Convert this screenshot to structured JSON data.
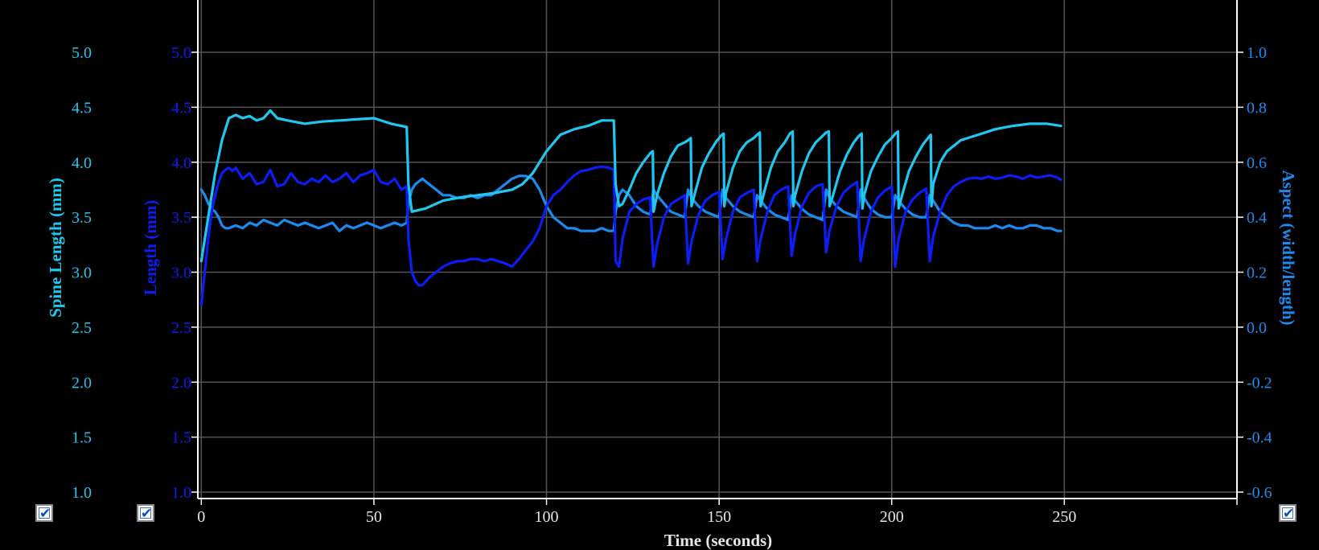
{
  "colors": {
    "background": "#000000",
    "grid": "#555555",
    "axis": "#ffffff",
    "spine_length": "#1ec8f0",
    "length": "#0a1ef5",
    "aspect": "#1a8cf0"
  },
  "checkboxes": [
    {
      "axis": "spine_length",
      "checked": true
    },
    {
      "axis": "length",
      "checked": true
    },
    {
      "axis": "aspect",
      "checked": true
    }
  ],
  "chart_data": {
    "type": "line",
    "xlabel": "Time (seconds)",
    "xlim": [
      -1,
      300
    ],
    "x_ticks": [
      "0",
      "50",
      "100",
      "150",
      "200",
      "250"
    ],
    "grid": true,
    "axes": {
      "spine_length": {
        "label": "Spine Length (mm)",
        "ylim": [
          1.0,
          5.0
        ],
        "ticks": [
          "1.0",
          "1.5",
          "2.0",
          "2.5",
          "3.0",
          "3.5",
          "4.0",
          "4.5",
          "5.0"
        ]
      },
      "length": {
        "label": "Length (mm)",
        "ylim": [
          1.0,
          5.0
        ],
        "ticks": [
          "1.0",
          "1.5",
          "2.0",
          "2.5",
          "3.0",
          "3.5",
          "4.0",
          "4.5",
          "5.0"
        ]
      },
      "aspect": {
        "label": "Aspect (width/length)",
        "ylim": [
          -0.6,
          1.0
        ],
        "ticks": [
          "-0.6",
          "-0.4",
          "-0.2",
          "0.0",
          "0.2",
          "0.4",
          "0.6",
          "0.8",
          "1.0"
        ]
      }
    },
    "series": [
      {
        "axis": "spine_length",
        "x": [
          0,
          2,
          4,
          6,
          8,
          10,
          12,
          14,
          16,
          18,
          20,
          22,
          25,
          30,
          35,
          40,
          45,
          50,
          55,
          59.5,
          60,
          61,
          65,
          70,
          75,
          80,
          85,
          90,
          93,
          96,
          100,
          104,
          108,
          112,
          116,
          119.5,
          120,
          121,
          122,
          124,
          126,
          128,
          130,
          130.8,
          131,
          132,
          134,
          136,
          138,
          140,
          141,
          141.8,
          142,
          143,
          145,
          147,
          149,
          150.5,
          151.3,
          151.5,
          152,
          154,
          156,
          158,
          160,
          161,
          161.8,
          162,
          163,
          165,
          167,
          169,
          170.5,
          171.3,
          171.5,
          172,
          174,
          176,
          178,
          180,
          181,
          181.8,
          182,
          183,
          185,
          187,
          189,
          190.5,
          191.3,
          191.5,
          192,
          194,
          196,
          198,
          200,
          201,
          201.8,
          202,
          203,
          205,
          207,
          209,
          210.5,
          211.3,
          211.5,
          212,
          214,
          216,
          218,
          220,
          225,
          230,
          235,
          240,
          245,
          249
        ],
        "y": [
          3.1,
          3.5,
          3.9,
          4.2,
          4.4,
          4.43,
          4.4,
          4.42,
          4.38,
          4.4,
          4.47,
          4.4,
          4.38,
          4.35,
          4.37,
          4.38,
          4.39,
          4.4,
          4.35,
          4.32,
          3.8,
          3.55,
          3.58,
          3.65,
          3.68,
          3.7,
          3.72,
          3.75,
          3.8,
          3.9,
          4.1,
          4.25,
          4.3,
          4.33,
          4.38,
          4.38,
          3.8,
          3.6,
          3.62,
          3.75,
          3.9,
          4.0,
          4.08,
          4.1,
          3.55,
          3.7,
          3.9,
          4.05,
          4.15,
          4.18,
          4.2,
          4.22,
          3.6,
          3.72,
          3.95,
          4.08,
          4.18,
          4.24,
          4.26,
          3.6,
          3.72,
          3.95,
          4.1,
          4.18,
          4.22,
          4.25,
          4.27,
          3.6,
          3.72,
          3.95,
          4.1,
          4.18,
          4.26,
          4.28,
          3.6,
          3.7,
          3.92,
          4.08,
          4.18,
          4.24,
          4.27,
          4.28,
          3.6,
          3.7,
          3.92,
          4.07,
          4.18,
          4.24,
          4.26,
          3.58,
          3.7,
          3.92,
          4.05,
          4.16,
          4.22,
          4.26,
          4.28,
          3.58,
          3.7,
          3.92,
          4.05,
          4.16,
          4.22,
          4.25,
          3.6,
          3.8,
          4.0,
          4.1,
          4.15,
          4.2,
          4.25,
          4.3,
          4.33,
          4.35,
          4.35,
          4.33
        ]
      },
      {
        "axis": "length",
        "x": [
          0,
          1,
          2,
          3,
          4,
          5,
          6,
          7,
          8,
          9,
          10,
          12,
          14,
          16,
          18,
          20,
          22,
          24,
          26,
          28,
          30,
          32,
          34,
          36,
          38,
          40,
          42,
          44,
          46,
          48,
          50,
          52,
          54,
          56,
          58,
          59.5,
          60,
          61,
          62,
          63,
          64,
          66,
          68,
          70,
          72,
          74,
          76,
          78,
          80,
          82,
          84,
          86,
          88,
          90,
          92,
          94,
          96,
          98,
          100,
          102,
          104,
          106,
          108,
          110,
          112,
          114,
          116,
          118,
          119.5,
          120,
          121,
          122,
          124,
          126,
          128,
          130,
          131,
          132,
          134,
          136,
          138,
          140,
          141,
          142,
          144,
          146,
          148,
          150,
          151,
          152,
          154,
          156,
          158,
          160,
          161,
          162,
          164,
          166,
          168,
          170,
          171,
          172,
          174,
          176,
          178,
          180,
          181,
          182,
          184,
          186,
          188,
          190,
          191,
          192,
          194,
          196,
          198,
          200,
          201,
          202,
          204,
          206,
          208,
          210,
          211,
          212,
          214,
          216,
          218,
          220,
          222,
          224,
          226,
          228,
          230,
          232,
          234,
          236,
          238,
          240,
          242,
          244,
          246,
          248,
          249
        ],
        "y": [
          2.7,
          3.0,
          3.3,
          3.55,
          3.7,
          3.82,
          3.9,
          3.93,
          3.95,
          3.92,
          3.95,
          3.85,
          3.9,
          3.8,
          3.82,
          3.93,
          3.78,
          3.8,
          3.9,
          3.82,
          3.8,
          3.85,
          3.82,
          3.88,
          3.82,
          3.85,
          3.9,
          3.82,
          3.88,
          3.9,
          3.93,
          3.82,
          3.8,
          3.85,
          3.75,
          3.78,
          3.3,
          3.0,
          2.92,
          2.88,
          2.88,
          2.95,
          3.0,
          3.05,
          3.08,
          3.1,
          3.1,
          3.12,
          3.12,
          3.1,
          3.12,
          3.1,
          3.08,
          3.05,
          3.12,
          3.2,
          3.28,
          3.4,
          3.6,
          3.7,
          3.75,
          3.82,
          3.88,
          3.92,
          3.93,
          3.95,
          3.96,
          3.95,
          3.93,
          3.1,
          3.05,
          3.3,
          3.55,
          3.62,
          3.66,
          3.68,
          3.05,
          3.25,
          3.5,
          3.62,
          3.66,
          3.7,
          3.08,
          3.28,
          3.52,
          3.65,
          3.7,
          3.73,
          3.12,
          3.3,
          3.55,
          3.68,
          3.72,
          3.75,
          3.1,
          3.3,
          3.55,
          3.7,
          3.75,
          3.78,
          3.15,
          3.35,
          3.6,
          3.72,
          3.78,
          3.8,
          3.18,
          3.38,
          3.6,
          3.72,
          3.78,
          3.82,
          3.1,
          3.3,
          3.55,
          3.68,
          3.74,
          3.78,
          3.05,
          3.3,
          3.55,
          3.66,
          3.72,
          3.76,
          3.1,
          3.32,
          3.55,
          3.7,
          3.78,
          3.82,
          3.85,
          3.86,
          3.85,
          3.87,
          3.85,
          3.86,
          3.88,
          3.87,
          3.85,
          3.88,
          3.86,
          3.87,
          3.88,
          3.86,
          3.84
        ]
      },
      {
        "axis": "aspect",
        "x": [
          0,
          1,
          2,
          3,
          4,
          5,
          6,
          7,
          8,
          10,
          12,
          14,
          16,
          18,
          20,
          22,
          24,
          26,
          28,
          30,
          32,
          34,
          36,
          38,
          40,
          42,
          44,
          46,
          48,
          50,
          52,
          54,
          56,
          58,
          59.5,
          60,
          61,
          62,
          63,
          64,
          66,
          68,
          70,
          72,
          74,
          76,
          78,
          80,
          82,
          84,
          86,
          88,
          90,
          92,
          94,
          96,
          98,
          100,
          102,
          104,
          106,
          108,
          110,
          112,
          114,
          116,
          118,
          119.5,
          120,
          121,
          122,
          124,
          126,
          128,
          130,
          131,
          132,
          134,
          136,
          138,
          140,
          141,
          142,
          144,
          146,
          148,
          150,
          151,
          152,
          154,
          156,
          158,
          160,
          161,
          162,
          164,
          166,
          168,
          170,
          171,
          172,
          174,
          176,
          178,
          180,
          181,
          182,
          184,
          186,
          188,
          190,
          191,
          192,
          194,
          196,
          198,
          200,
          201,
          202,
          204,
          206,
          208,
          210,
          211,
          212,
          214,
          216,
          218,
          220,
          222,
          224,
          226,
          228,
          230,
          232,
          234,
          236,
          238,
          240,
          242,
          244,
          246,
          248,
          249
        ],
        "y": [
          0.5,
          0.48,
          0.45,
          0.43,
          0.42,
          0.4,
          0.37,
          0.36,
          0.36,
          0.37,
          0.36,
          0.38,
          0.37,
          0.39,
          0.38,
          0.37,
          0.39,
          0.38,
          0.37,
          0.38,
          0.37,
          0.36,
          0.37,
          0.38,
          0.35,
          0.37,
          0.36,
          0.37,
          0.38,
          0.37,
          0.36,
          0.37,
          0.38,
          0.37,
          0.38,
          0.45,
          0.5,
          0.52,
          0.53,
          0.54,
          0.52,
          0.5,
          0.48,
          0.48,
          0.47,
          0.47,
          0.48,
          0.47,
          0.48,
          0.48,
          0.5,
          0.52,
          0.54,
          0.55,
          0.55,
          0.54,
          0.5,
          0.44,
          0.4,
          0.38,
          0.36,
          0.36,
          0.35,
          0.35,
          0.35,
          0.36,
          0.35,
          0.35,
          0.42,
          0.48,
          0.5,
          0.48,
          0.44,
          0.42,
          0.41,
          0.5,
          0.48,
          0.45,
          0.42,
          0.41,
          0.4,
          0.5,
          0.47,
          0.44,
          0.42,
          0.41,
          0.4,
          0.5,
          0.47,
          0.44,
          0.42,
          0.41,
          0.4,
          0.48,
          0.46,
          0.43,
          0.41,
          0.4,
          0.39,
          0.48,
          0.46,
          0.43,
          0.41,
          0.4,
          0.39,
          0.5,
          0.47,
          0.44,
          0.42,
          0.41,
          0.4,
          0.5,
          0.47,
          0.43,
          0.41,
          0.4,
          0.4,
          0.48,
          0.46,
          0.43,
          0.41,
          0.4,
          0.4,
          0.48,
          0.46,
          0.42,
          0.4,
          0.38,
          0.37,
          0.37,
          0.36,
          0.36,
          0.36,
          0.37,
          0.36,
          0.37,
          0.36,
          0.36,
          0.37,
          0.37,
          0.36,
          0.36,
          0.35,
          0.35
        ]
      }
    ]
  }
}
